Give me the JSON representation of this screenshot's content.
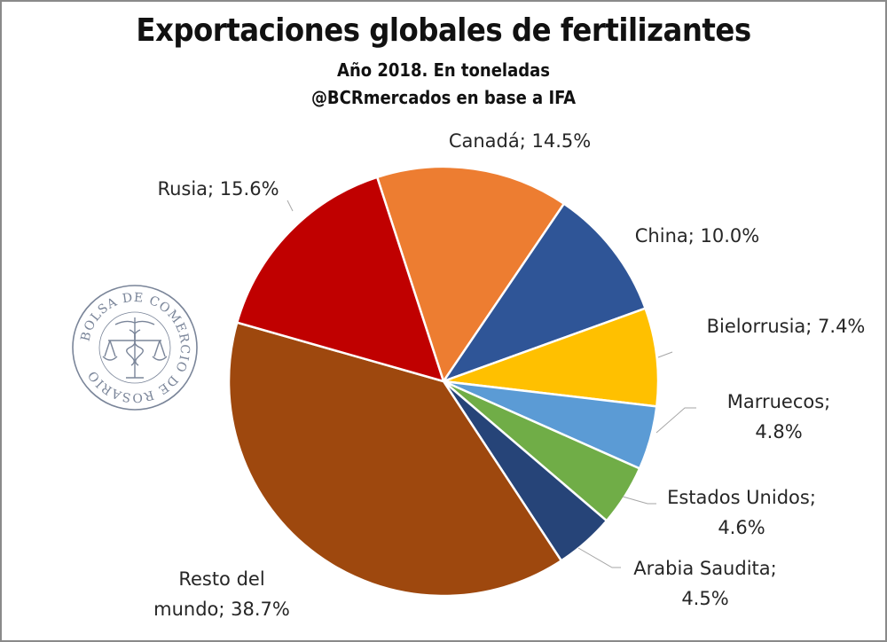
{
  "chart_data": {
    "type": "pie",
    "title": "Exportaciones globales de fertilizantes",
    "subtitle": "Año 2018. En toneladas",
    "source": "@BCRmercados en base a IFA",
    "slices": [
      {
        "name": "Canadá",
        "value": 14.5,
        "color": "#ed7d31",
        "label": "Canadá; 14.5%"
      },
      {
        "name": "China",
        "value": 10.0,
        "color": "#2f5597",
        "label": "China; 10.0%"
      },
      {
        "name": "Bielorrusia",
        "value": 7.4,
        "color": "#ffc000",
        "label": "Bielorrusia; 7.4%"
      },
      {
        "name": "Marruecos",
        "value": 4.8,
        "color": "#5b9bd5",
        "label_lines": [
          "Marruecos;",
          "4.8%"
        ]
      },
      {
        "name": "Estados Unidos",
        "value": 4.6,
        "color": "#70ad47",
        "label_lines": [
          "Estados Unidos;",
          "4.6%"
        ]
      },
      {
        "name": "Arabia Saudita",
        "value": 4.5,
        "color": "#264478",
        "label_lines": [
          "Arabia Saudita;",
          "4.5%"
        ]
      },
      {
        "name": "Resto del mundo",
        "value": 38.7,
        "color": "#9e480e",
        "label_lines": [
          "Resto del",
          "mundo; 38.7%"
        ]
      },
      {
        "name": "Rusia",
        "value": 15.6,
        "color": "#c00000",
        "label": "Rusia; 15.6%"
      }
    ]
  },
  "logo": {
    "text": "BOLSA DE COMERCIO DE ROSARIO",
    "color": "#7a8599",
    "icon": "caduceus-scales-icon"
  }
}
